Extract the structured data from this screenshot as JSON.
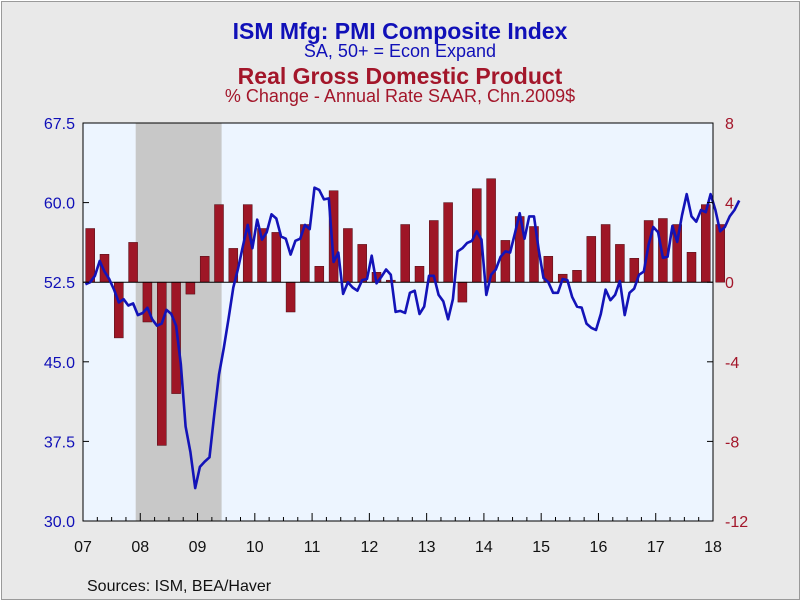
{
  "titles": {
    "line1": "ISM Mfg: PMI Composite Index",
    "line2": "SA, 50+ = Econ Expand",
    "line3": "Real Gross Domestic Product",
    "line4": "% Change - Annual Rate     SAAR, Chn.2009$"
  },
  "source_note": "Sources:  ISM, BEA/Haver",
  "colors": {
    "pmi_line": "#1313b8",
    "gdp_bar": "#9e1626",
    "plot_background": "#edf5ff",
    "recession_shade": "#c8c8c8",
    "left_axis_text": "#1010b8",
    "right_axis_text": "#a3162a"
  },
  "chart_data": {
    "type": "bar+line",
    "recession": {
      "start": 2007.92,
      "end": 2009.42
    },
    "x_tick_labels": [
      "07",
      "08",
      "09",
      "10",
      "11",
      "12",
      "13",
      "14",
      "15",
      "16",
      "17",
      "18"
    ],
    "x_range": [
      2007.0,
      2018.0
    ],
    "left_axis": {
      "series": "ISM Mfg: PMI Composite Index",
      "range": [
        30.0,
        67.5
      ],
      "ticks": [
        "67.5",
        "60.0",
        "52.5",
        "45.0",
        "37.5",
        "30.0"
      ]
    },
    "right_axis": {
      "series": "Real Gross Domestic Product",
      "range": [
        -12,
        8
      ],
      "ticks": [
        "8",
        "4",
        "0",
        "-4",
        "-8",
        "-12"
      ]
    },
    "gdp_quarterly": {
      "start": 2007.0,
      "step": 0.25,
      "values": [
        2.7,
        1.4,
        -2.8,
        2.0,
        -2.0,
        -8.2,
        -5.6,
        -0.6,
        1.3,
        3.9,
        1.7,
        3.9,
        2.7,
        2.5,
        -1.5,
        2.9,
        0.8,
        4.6,
        2.7,
        1.9,
        0.5,
        0.1,
        2.9,
        0.8,
        3.1,
        4.0,
        -1.0,
        4.7,
        5.2,
        2.1,
        3.3,
        2.8,
        1.3,
        0.4,
        0.6,
        2.3,
        2.9,
        1.9,
        1.2,
        3.1,
        3.2,
        2.9,
        1.5,
        3.9,
        2.9
      ]
    },
    "pmi_monthly": {
      "start": 2007.0,
      "step": 0.08333,
      "values": [
        52.3,
        52.5,
        53.1,
        54.5,
        53.5,
        52.8,
        51.8,
        50.6,
        50.9,
        50.3,
        50.5,
        49.4,
        49.6,
        50.1,
        49.0,
        48.4,
        48.6,
        49.9,
        49.5,
        48.4,
        44.8,
        38.9,
        36.5,
        33.1,
        35.1,
        35.6,
        36.0,
        40.0,
        43.8,
        46.3,
        49.1,
        52.0,
        53.8,
        55.9,
        57.9,
        55.7,
        58.4,
        56.5,
        57.2,
        58.9,
        58.5,
        56.8,
        56.6,
        55.1,
        56.4,
        56.6,
        57.9,
        57.5,
        61.4,
        61.2,
        60.3,
        60.4,
        54.4,
        55.3,
        51.4,
        52.5,
        52.0,
        51.7,
        52.7,
        52.8,
        55.0,
        52.4,
        53.0,
        53.7,
        53.2,
        49.7,
        49.8,
        49.6,
        51.5,
        51.7,
        49.5,
        50.2,
        53.1,
        53.1,
        51.3,
        50.7,
        49.0,
        50.9,
        55.4,
        55.7,
        56.2,
        56.4,
        57.3,
        56.5,
        51.3,
        53.2,
        53.7,
        54.9,
        55.4,
        55.3,
        57.1,
        59.0,
        56.6,
        58.7,
        58.7,
        55.5,
        52.9,
        52.5,
        51.5,
        51.5,
        52.8,
        52.7,
        51.1,
        50.2,
        50.1,
        48.6,
        48.2,
        48.0,
        49.5,
        51.8,
        50.8,
        51.3,
        52.6,
        49.4,
        51.5,
        51.9,
        53.2,
        53.5,
        56.0,
        57.7,
        57.2,
        54.8,
        54.9,
        57.8,
        56.3,
        58.8,
        60.8,
        58.7,
        58.2,
        59.3,
        59.1,
        60.8,
        59.3,
        57.3,
        57.7,
        58.7,
        59.3,
        60.2
      ]
    }
  }
}
